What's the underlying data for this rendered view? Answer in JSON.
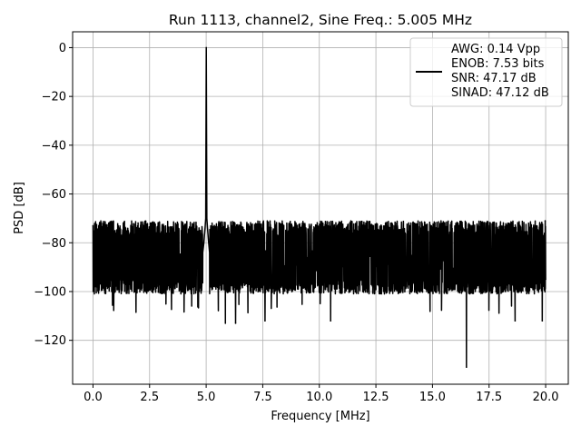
{
  "chart_data": {
    "type": "line",
    "title": "Run 1113, channel2, Sine Freq.: 5.005 MHz",
    "xlabel": "Frequency [MHz]",
    "ylabel": "PSD [dB]",
    "xlim": [
      -0.9,
      21.0
    ],
    "ylim": [
      -138,
      6.5
    ],
    "xticks": [
      0.0,
      2.5,
      5.0,
      7.5,
      10.0,
      12.5,
      15.0,
      17.5,
      20.0
    ],
    "xtick_labels": [
      "0.0",
      "2.5",
      "5.0",
      "7.5",
      "10.0",
      "12.5",
      "15.0",
      "17.5",
      "20.0"
    ],
    "yticks": [
      0,
      -20,
      -40,
      -60,
      -80,
      -100,
      -120
    ],
    "ytick_labels": [
      "0",
      "−20",
      "−40",
      "−60",
      "−80",
      "−100",
      "−120"
    ],
    "grid": true,
    "legend_position": "top-right",
    "series": [
      {
        "color": "#000000",
        "legend_lines": [
          "AWG: 0.14 Vpp",
          "ENOB: 7.53 bits",
          "SNR: 47.17 dB",
          "SINAD: 47.12 dB"
        ],
        "x_range": [
          0.0,
          20.0
        ],
        "noise_floor_db": -88,
        "noise_band_db": [
          -101,
          -77
        ],
        "peak": {
          "x": 5.005,
          "y": 0
        },
        "peak_skirt": [
          {
            "x": 4.85,
            "y": -84
          },
          {
            "x": 4.9,
            "y": -80
          },
          {
            "x": 4.95,
            "y": -74
          },
          {
            "x": 4.98,
            "y": -70
          },
          {
            "x": 5.005,
            "y": 0
          },
          {
            "x": 5.03,
            "y": -70
          },
          {
            "x": 5.06,
            "y": -74
          },
          {
            "x": 5.1,
            "y": -79
          },
          {
            "x": 5.15,
            "y": -84
          }
        ],
        "notable_points": [
          {
            "x": 0.0,
            "y": -73
          },
          {
            "x": 0.05,
            "y": -83
          },
          {
            "x": 5.85,
            "y": -113
          },
          {
            "x": 6.3,
            "y": -113
          },
          {
            "x": 7.6,
            "y": -112
          },
          {
            "x": 9.9,
            "y": -75
          },
          {
            "x": 10.5,
            "y": -112
          },
          {
            "x": 16.5,
            "y": -131
          },
          {
            "x": 18.65,
            "y": -112
          },
          {
            "x": 19.85,
            "y": -112
          },
          {
            "x": 19.98,
            "y": -71
          },
          {
            "x": 20.0,
            "y": -95
          }
        ]
      }
    ]
  }
}
